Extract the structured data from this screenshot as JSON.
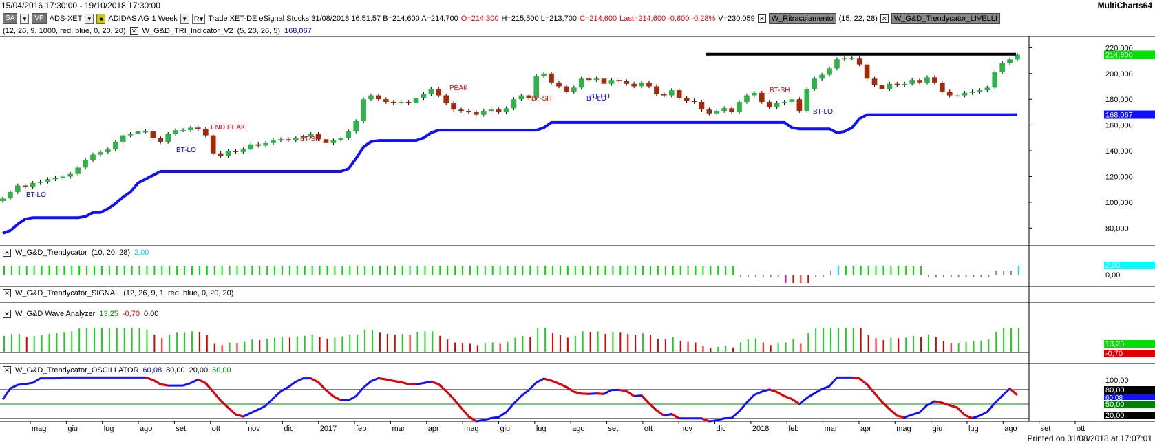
{
  "window": {
    "date_range": "15/04/2016 17:30:00 - 19/10/2018 17:30:00",
    "app_name": "MultiCharts64"
  },
  "toolbar": {
    "btn_sa": "SA",
    "btn_vp": "VP",
    "symbol": "ADS-XET",
    "name": "ADIDAS AG",
    "interval": "1 Week",
    "rt": "R",
    "info": "Trade XET-DE eSignal Stocks 31/08/2018 16:51:57 B=214,600 A=214,700",
    "open": "O=214,300",
    "hl": "H=215,500 L=213,700",
    "close": "C=214,600",
    "last": "Last=214,600 -0,600 -0,28%",
    "volume": "V=230.059",
    "ind1_name": "W_Ritracciamento",
    "ind1_params": "(15, 22, 28)",
    "ind2_name": "W_G&D_Trendycator_LIVELLI"
  },
  "indicator_line": {
    "params1": "(12, 26, 9, 1000, red, blue, 0, 20, 20)",
    "name2": "W_G&D_TRI_Indicator_V2",
    "params2": "(5, 20, 26, 5)",
    "value2": "168,067"
  },
  "price_axis": {
    "ticks": [
      "220,000",
      "200,000",
      "180,000",
      "160,000",
      "140,000",
      "120,000",
      "100,000",
      "80,000"
    ],
    "last_price_label": "214,600",
    "tri_label": "168,067",
    "colors": {
      "last_price_bg": "#00e000",
      "tri_bg": "#1010ff"
    }
  },
  "annotations": [
    {
      "text": "BT-LO",
      "color": "#0000cc"
    },
    {
      "text": "END PEAK",
      "color": "#e00000"
    },
    {
      "text": "BT-LO",
      "color": "#0000cc"
    },
    {
      "text": "BT-SH",
      "color": "#e00000"
    },
    {
      "text": "PEAK",
      "color": "#e00000"
    },
    {
      "text": "BT-SH",
      "color": "#e00000"
    },
    {
      "text": "BT-LO",
      "color": "#0000cc"
    },
    {
      "text": "BT-LO",
      "color": "#0000cc"
    },
    {
      "text": "BT-SH",
      "color": "#e00000"
    },
    {
      "text": "BT-LO",
      "color": "#0000cc"
    }
  ],
  "panels": {
    "trendycator": {
      "name": "W_G&D_Trendycator",
      "params": "(10, 20, 28)",
      "value": "2,00",
      "axis_ticks": [
        "2,00",
        "0,00"
      ]
    },
    "signal": {
      "name": "W_G&D_Trendycator_SIGNAL",
      "params": "(12, 26, 9, 1, red, blue, 0, 20, 20)"
    },
    "wave": {
      "name": "W_G&D Wave Analyzer",
      "v1": "13,25",
      "v2": "-0,70",
      "v3": "0,00",
      "axis_ticks": [
        "13,25",
        "-0,70"
      ]
    },
    "oscillator": {
      "name": "W_G&D_Trendycator_OSCILLATOR",
      "v1": "60,08",
      "v2": "80,00",
      "v3": "20,00",
      "v4": "50,00",
      "axis_ticks": [
        "100,00",
        "80,00",
        "60,08",
        "50,00",
        "20,00"
      ]
    }
  },
  "time_axis": {
    "labels": [
      "mag",
      "giu",
      "lug",
      "ago",
      "set",
      "ott",
      "nov",
      "dic",
      "2017",
      "feb",
      "mar",
      "apr",
      "mag",
      "giu",
      "lug",
      "ago",
      "set",
      "ott",
      "nov",
      "dic",
      "2018",
      "feb",
      "mar",
      "apr",
      "mag",
      "giu",
      "lug",
      "ago",
      "set",
      "ott"
    ]
  },
  "footer": {
    "printed": "Printed on 31/08/2018 at 17:07:01"
  },
  "chart_data": {
    "type": "candlestick",
    "title": "ADIDAS AG 1 Week",
    "ylim": [
      70,
      225
    ],
    "x_range": [
      "2016-04-15",
      "2018-10-19"
    ],
    "close": [
      103,
      108,
      113,
      112,
      115,
      116,
      118,
      119,
      120,
      122,
      127,
      133,
      137,
      139,
      141,
      147,
      152,
      153,
      155,
      155,
      150,
      147,
      153,
      156,
      156,
      158,
      157,
      152,
      138,
      136,
      140,
      139,
      141,
      145,
      144,
      146,
      148,
      149,
      148,
      150,
      151,
      153,
      149,
      146,
      148,
      150,
      155,
      163,
      180,
      183,
      180,
      178,
      177,
      178,
      177,
      181,
      184,
      188,
      183,
      177,
      172,
      171,
      170,
      168,
      171,
      172,
      170,
      173,
      180,
      183,
      181,
      198,
      200,
      193,
      190,
      186,
      189,
      196,
      195,
      196,
      192,
      195,
      194,
      192,
      190,
      193,
      190,
      184,
      183,
      187,
      181,
      179,
      178,
      172,
      169,
      171,
      173,
      170,
      178,
      183,
      185,
      178,
      174,
      177,
      178,
      180,
      171,
      188,
      196,
      199,
      204,
      211,
      212,
      212,
      207,
      196,
      191,
      188,
      192,
      191,
      192,
      195,
      193,
      197,
      193,
      186,
      183,
      183,
      185,
      186,
      187,
      189,
      201,
      208,
      211,
      214.6
    ],
    "tri_line": [
      76,
      78,
      83,
      87,
      88,
      88,
      88,
      88,
      88,
      88,
      88,
      89,
      92,
      92,
      95,
      99,
      104,
      108,
      115,
      118,
      121,
      124,
      124,
      124,
      124,
      124,
      124,
      124,
      124,
      124,
      124,
      124,
      124,
      124,
      124,
      124,
      124,
      124,
      124,
      124,
      124,
      124,
      124,
      124,
      124,
      124,
      126,
      134,
      143,
      147,
      148,
      148,
      148,
      148,
      148,
      148,
      150,
      154,
      156,
      156,
      156,
      156,
      156,
      156,
      156,
      156,
      156,
      156,
      156,
      156,
      156,
      156,
      158,
      162,
      162,
      162,
      162,
      162,
      162,
      162,
      162,
      162,
      162,
      162,
      162,
      162,
      162,
      162,
      162,
      162,
      162,
      162,
      162,
      162,
      162,
      162,
      162,
      162,
      162,
      162,
      162,
      162,
      162,
      162,
      162,
      158,
      157,
      157,
      157,
      157,
      157,
      154,
      155,
      158,
      165,
      168,
      168,
      168,
      168,
      168,
      168,
      168,
      168,
      168,
      168,
      168,
      168,
      168,
      168,
      168,
      168,
      168,
      168,
      168,
      168,
      168.067
    ],
    "resistance_level": 215,
    "oscillator": {
      "ylim": [
        0,
        110
      ],
      "levels": [
        80,
        50,
        20
      ],
      "last": 60.08
    }
  }
}
